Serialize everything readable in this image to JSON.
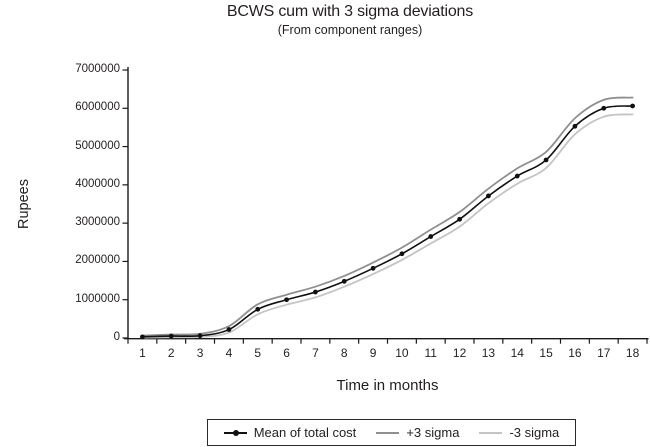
{
  "chart_data": {
    "type": "line",
    "title": "BCWS cum with 3 sigma deviations",
    "subtitle": "(From component ranges)",
    "xlabel": "Time in months",
    "ylabel": "Rupees",
    "x": [
      1,
      2,
      3,
      4,
      5,
      6,
      7,
      8,
      9,
      10,
      11,
      12,
      13,
      14,
      15,
      16,
      17,
      18
    ],
    "ylim": [
      0,
      7000000
    ],
    "yticks": [
      0,
      1000000,
      2000000,
      3000000,
      4000000,
      5000000,
      6000000,
      7000000
    ],
    "yticklabels": [
      "0",
      "1000000",
      "2000000",
      "3000000",
      "4000000",
      "5000000",
      "6000000",
      "7000000"
    ],
    "grid": false,
    "legend_position": "bottom",
    "axis_color": "#1a1a1a",
    "series": [
      {
        "name": "Mean of total cost",
        "color": "#111111",
        "marker": "circle",
        "values": [
          30000,
          50000,
          60000,
          220000,
          750000,
          1000000,
          1200000,
          1480000,
          1820000,
          2200000,
          2650000,
          3100000,
          3710000,
          4230000,
          4650000,
          5530000,
          6000000,
          6060000
        ]
      },
      {
        "name": "+3 sigma",
        "color": "#8f8f8f",
        "marker": "none",
        "values": [
          60000,
          90000,
          110000,
          310000,
          880000,
          1130000,
          1340000,
          1620000,
          1970000,
          2360000,
          2830000,
          3290000,
          3900000,
          4430000,
          4860000,
          5740000,
          6220000,
          6280000
        ]
      },
      {
        "name": "-3 sigma",
        "color": "#c4c4c4",
        "marker": "none",
        "values": [
          10000,
          20000,
          30000,
          140000,
          620000,
          870000,
          1060000,
          1340000,
          1670000,
          2040000,
          2470000,
          2910000,
          3520000,
          4030000,
          4440000,
          5320000,
          5780000,
          5840000
        ]
      }
    ]
  }
}
